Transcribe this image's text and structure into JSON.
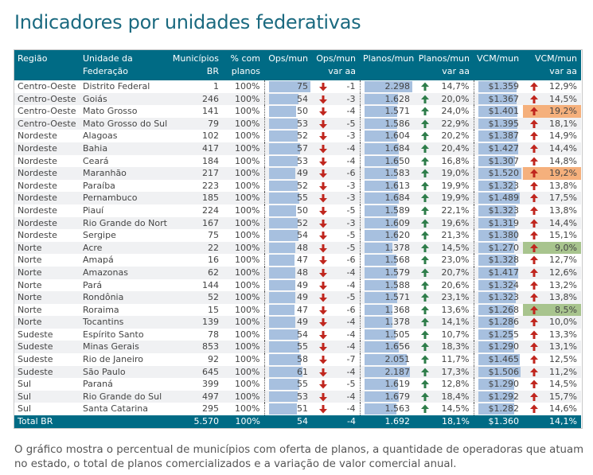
{
  "title": "Indicadores por unidades federativas",
  "colors": {
    "header": "#006b85",
    "bar": "#a7c0df",
    "arrow_down": "#c0261e",
    "arrow_up_green": "#2e7d4a",
    "arrow_up_red": "#c0261e",
    "highlight_high": "#f5b07c",
    "highlight_low": "#a8c48e"
  },
  "columns": [
    "Região",
    "Unidade da Federação",
    "Municípios BR",
    "% com planos",
    "Ops/mun",
    "Ops/mun var aa",
    "Planos/mun",
    "Planos/mun var aa",
    "VCM/mun",
    "VCM/mun var aa"
  ],
  "icons": {
    "ops_var": "arrow-down-red-icon",
    "planos_var": "arrow-up-green-icon",
    "vcm_var": "arrow-up-red-icon"
  },
  "rows": [
    [
      "Centro-Oeste",
      "Distrito Federal",
      "1",
      "100%",
      "75",
      "-1",
      "2.298",
      "14,7%",
      "$1.359",
      "12,9%"
    ],
    [
      "Centro-Oeste",
      "Goiás",
      "246",
      "100%",
      "54",
      "-3",
      "1.628",
      "20,0%",
      "$1.367",
      "14,5%"
    ],
    [
      "Centro-Oeste",
      "Mato Grosso",
      "141",
      "100%",
      "50",
      "-4",
      "1.571",
      "24,0%",
      "$1.401",
      "19,2%"
    ],
    [
      "Centro-Oeste",
      "Mato Grosso do Sul",
      "79",
      "100%",
      "53",
      "-5",
      "1.586",
      "22,9%",
      "$1.395",
      "18,1%"
    ],
    [
      "Nordeste",
      "Alagoas",
      "102",
      "100%",
      "52",
      "-3",
      "1.604",
      "20,2%",
      "$1.387",
      "14,9%"
    ],
    [
      "Nordeste",
      "Bahia",
      "417",
      "100%",
      "57",
      "-4",
      "1.684",
      "20,4%",
      "$1.427",
      "14,4%"
    ],
    [
      "Nordeste",
      "Ceará",
      "184",
      "100%",
      "53",
      "-4",
      "1.650",
      "16,8%",
      "$1.307",
      "14,8%"
    ],
    [
      "Nordeste",
      "Maranhão",
      "217",
      "100%",
      "49",
      "-6",
      "1.583",
      "19,0%",
      "$1.520",
      "19,2%"
    ],
    [
      "Nordeste",
      "Paraíba",
      "223",
      "100%",
      "52",
      "-3",
      "1.613",
      "19,9%",
      "$1.323",
      "13,8%"
    ],
    [
      "Nordeste",
      "Pernambuco",
      "185",
      "100%",
      "55",
      "-3",
      "1.684",
      "19,9%",
      "$1.489",
      "17,5%"
    ],
    [
      "Nordeste",
      "Piauí",
      "224",
      "100%",
      "50",
      "-5",
      "1.589",
      "22,1%",
      "$1.323",
      "13,8%"
    ],
    [
      "Nordeste",
      "Rio Grande do Norte",
      "167",
      "100%",
      "52",
      "-3",
      "1.609",
      "19,6%",
      "$1.319",
      "14,4%"
    ],
    [
      "Nordeste",
      "Sergipe",
      "75",
      "100%",
      "54",
      "-5",
      "1.620",
      "21,3%",
      "$1.380",
      "15,1%"
    ],
    [
      "Norte",
      "Acre",
      "22",
      "100%",
      "48",
      "-5",
      "1.378",
      "14,5%",
      "$1.270",
      "9,0%"
    ],
    [
      "Norte",
      "Amapá",
      "16",
      "100%",
      "47",
      "-6",
      "1.568",
      "23,0%",
      "$1.328",
      "12,7%"
    ],
    [
      "Norte",
      "Amazonas",
      "62",
      "100%",
      "48",
      "-4",
      "1.579",
      "20,7%",
      "$1.417",
      "12,6%"
    ],
    [
      "Norte",
      "Pará",
      "144",
      "100%",
      "49",
      "-4",
      "1.588",
      "20,6%",
      "$1.324",
      "13,2%"
    ],
    [
      "Norte",
      "Rondônia",
      "52",
      "100%",
      "49",
      "-5",
      "1.571",
      "23,1%",
      "$1.323",
      "13,8%"
    ],
    [
      "Norte",
      "Roraima",
      "15",
      "100%",
      "47",
      "-6",
      "1.368",
      "13,6%",
      "$1.268",
      "8,5%"
    ],
    [
      "Norte",
      "Tocantins",
      "139",
      "100%",
      "49",
      "-4",
      "1.378",
      "14,1%",
      "$1.286",
      "10,0%"
    ],
    [
      "Sudeste",
      "Espírito Santo",
      "78",
      "100%",
      "54",
      "-4",
      "1.505",
      "10,7%",
      "$1.255",
      "13,3%"
    ],
    [
      "Sudeste",
      "Minas Gerais",
      "853",
      "100%",
      "55",
      "-4",
      "1.656",
      "18,3%",
      "$1.290",
      "13,1%"
    ],
    [
      "Sudeste",
      "Rio de Janeiro",
      "92",
      "100%",
      "58",
      "-7",
      "2.051",
      "11,7%",
      "$1.465",
      "12,5%"
    ],
    [
      "Sudeste",
      "São Paulo",
      "645",
      "100%",
      "61",
      "-4",
      "2.187",
      "17,3%",
      "$1.506",
      "11,2%"
    ],
    [
      "Sul",
      "Paraná",
      "399",
      "100%",
      "55",
      "-5",
      "1.619",
      "12,8%",
      "$1.290",
      "14,5%"
    ],
    [
      "Sul",
      "Rio Grande do Sul",
      "497",
      "100%",
      "53",
      "-4",
      "1.679",
      "18,4%",
      "$1.292",
      "15,7%"
    ],
    [
      "Sul",
      "Santa Catarina",
      "295",
      "100%",
      "51",
      "-4",
      "1.563",
      "14,5%",
      "$1.282",
      "14,6%"
    ]
  ],
  "highlights": {
    "2": "high",
    "7": "high",
    "13": "low",
    "18": "low"
  },
  "total": [
    "Total BR",
    "",
    "5.570",
    "100%",
    "54",
    "-4",
    "1.692",
    "18,1%",
    "$1.360",
    "14,1%"
  ],
  "caption": "O gráfico mostra o percentual de municípios com oferta de planos, a quantidade de operadoras que atuam no estado, o total de planos comercializados e a variação de valor comercial anual."
}
